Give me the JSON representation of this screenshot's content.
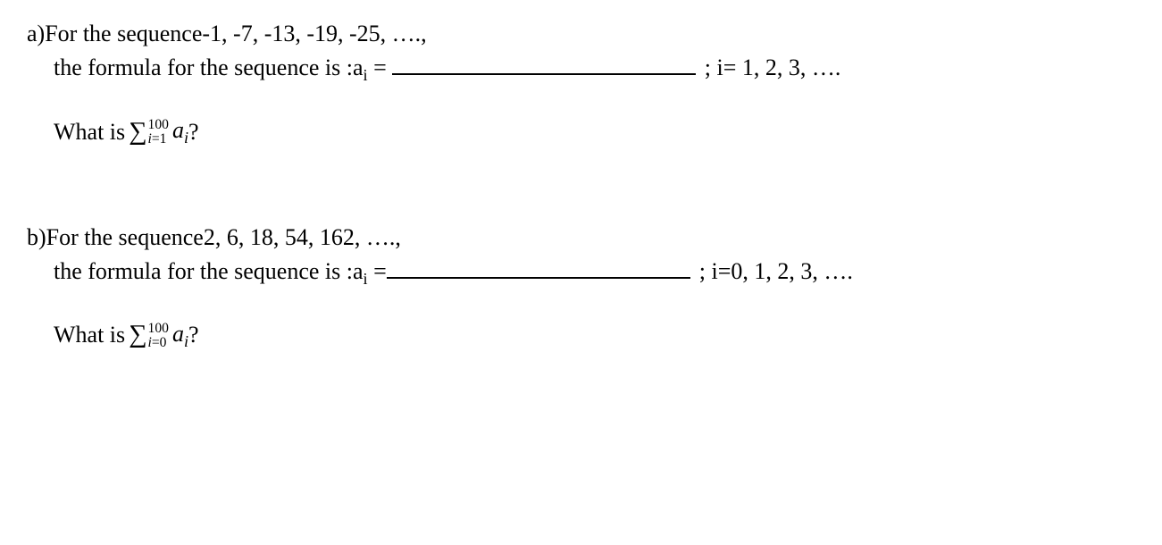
{
  "problems": {
    "a": {
      "label": "a)",
      "seq_intro": "For the sequence ",
      "sequence": "-1, -7, -13, -19, -25, ….,",
      "formula_text": "the formula for the sequence is :   ",
      "ai_eq": "a",
      "sub_i": "i",
      "equals": " =",
      "semicolon_idx": ";  i= 1, 2, 3, ….",
      "what_is": "What is  ",
      "sigma": "∑",
      "upper": "100",
      "lower_var": "i",
      "lower_eq": "=1",
      "term": " a",
      "term_sub": "i",
      "qmark": "  ?"
    },
    "b": {
      "label": "b)",
      "seq_intro": "For the sequence   ",
      "sequence": "2,  6,  18,  54, 162, ….,",
      "formula_text": "the formula for the sequence is :   ",
      "ai_eq": "a",
      "sub_i": "i",
      "equals": " =",
      "semicolon_idx": ";  i=0, 1, 2, 3, ….",
      "what_is": "What is  ",
      "sigma": "∑",
      "upper": "100",
      "lower_var": "i",
      "lower_eq": "=0",
      "term": " a",
      "term_sub": "i",
      "qmark": " ?"
    }
  }
}
